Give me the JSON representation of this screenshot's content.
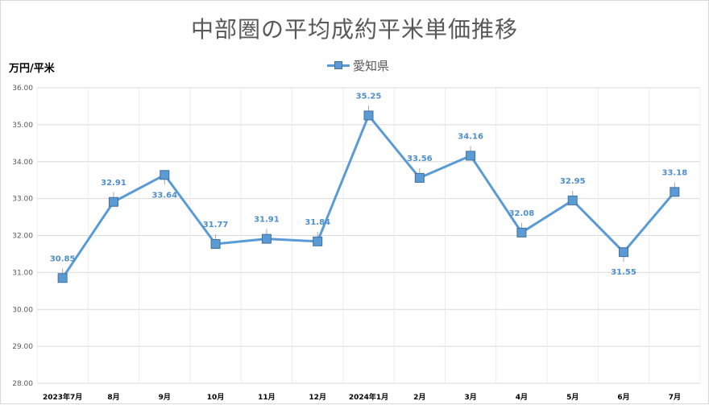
{
  "chart_data": {
    "type": "line",
    "title": "中部圏の平均成約平米単価推移",
    "ylabel": "万円/平米",
    "xlabel": "",
    "categories": [
      "2023年7月",
      "8月",
      "9月",
      "10月",
      "11月",
      "12月",
      "2024年1月",
      "2月",
      "3月",
      "4月",
      "5月",
      "6月",
      "7月"
    ],
    "series": [
      {
        "name": "愛知県",
        "values": [
          30.85,
          32.91,
          33.64,
          31.77,
          31.91,
          31.84,
          35.25,
          33.56,
          34.16,
          32.08,
          32.95,
          31.55,
          33.18
        ],
        "labels": [
          "30.85",
          "32.91",
          "33.64",
          "31.77",
          "31.91",
          "31.84",
          "35.25",
          "33.56",
          "34.16",
          "32.08",
          "32.95",
          "31.55",
          "33.18"
        ]
      }
    ],
    "ylim": [
      28,
      36
    ],
    "yticks": [
      "28.00",
      "29.00",
      "30.00",
      "31.00",
      "32.00",
      "33.00",
      "34.00",
      "35.00",
      "36.00"
    ],
    "grid": true,
    "legend": "top-center",
    "colors": {
      "series": "#5b9bd5",
      "marker_border": "#41719c",
      "label": "#4e8fcc",
      "grid": "#d9d9d9"
    }
  }
}
